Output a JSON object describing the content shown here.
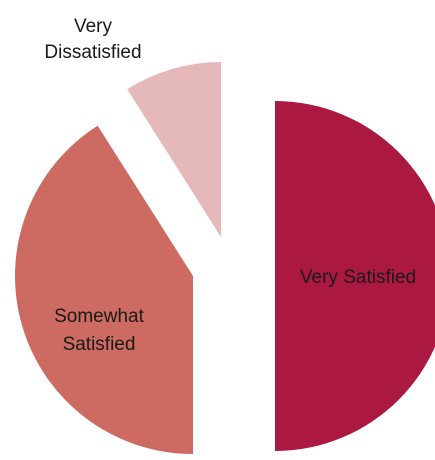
{
  "chart_data": {
    "type": "pie",
    "title": "",
    "exploded": true,
    "start_angle_deg": 0,
    "direction": "clockwise",
    "slices": [
      {
        "label_lines": [
          "Very Satisfied"
        ],
        "value": 50,
        "color": "#ab1841"
      },
      {
        "label_lines": [
          "Somewhat",
          "Satisfied"
        ],
        "value": 41,
        "color": "#cd6a61"
      },
      {
        "label_lines": [
          "Very",
          "Dissatisfied"
        ],
        "value": 9,
        "color": "#e5b8b9"
      }
    ]
  }
}
